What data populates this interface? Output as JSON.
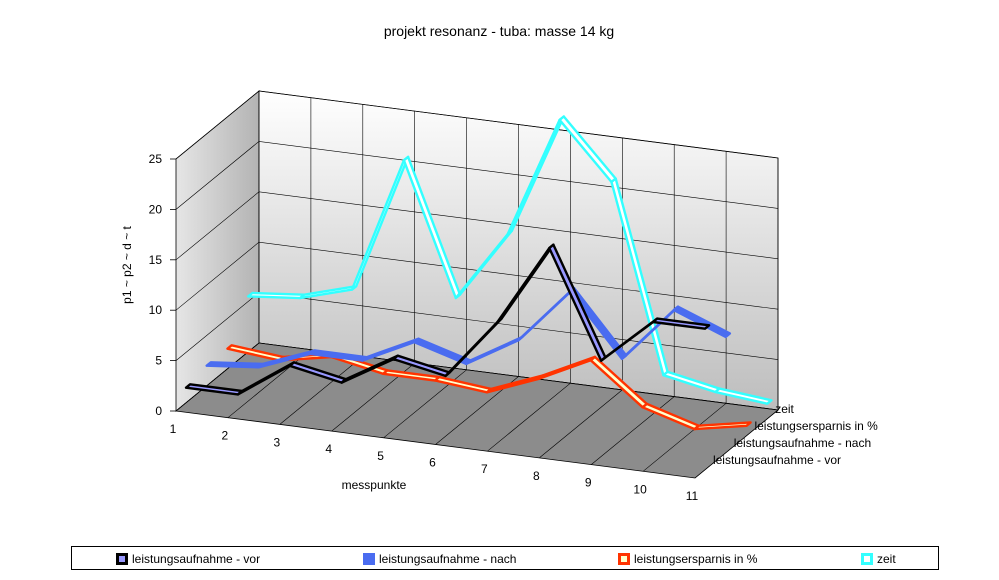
{
  "chart_data": {
    "type": "line",
    "title": "projekt resonanz - tuba: masse 14 kg",
    "xlabel": "messpunkte",
    "ylabel": "p1 ~ p2 ~ d ~ t",
    "categories": [
      "1",
      "2",
      "3",
      "4",
      "5",
      "6",
      "7",
      "8",
      "9",
      "10",
      "11"
    ],
    "ylim": [
      0,
      25
    ],
    "yticks": [
      "0",
      "5",
      "10",
      "15",
      "20",
      "25"
    ],
    "grid": true,
    "legend_position": "bottom",
    "series": [
      {
        "name": "leistungsaufnahme - vor",
        "color": "#000000",
        "fill": "#9999ff",
        "values": [
          1.5,
          1.5,
          5.0,
          4.0,
          7.0,
          6.0,
          12.0,
          20.0,
          9.5,
          14.0,
          14.0
        ]
      },
      {
        "name": "leistungsaufnahme - nach",
        "color": "#4a6cf0",
        "fill": "#4a6cf0",
        "values": [
          2.0,
          2.5,
          4.5,
          4.5,
          7.0,
          5.5,
          8.5,
          14.0,
          8.0,
          13.5,
          11.5
        ]
      },
      {
        "name": "leistungsersparnis in %",
        "color": "#ff3300",
        "fill": "#ffffcc",
        "values": [
          2.0,
          1.5,
          2.5,
          1.5,
          1.5,
          1.0,
          3.0,
          5.5,
          1.5,
          0.0,
          1.0
        ]
      },
      {
        "name": "zeit",
        "color": "#33ffff",
        "fill": "#ffffff",
        "values": [
          5.5,
          6.0,
          7.5,
          21.0,
          8.0,
          15.0,
          27.0,
          21.5,
          3.0,
          2.0,
          1.5
        ]
      }
    ]
  }
}
